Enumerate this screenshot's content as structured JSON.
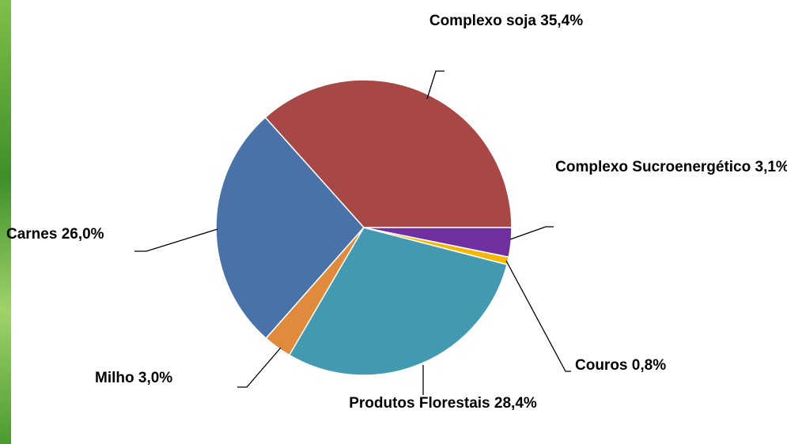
{
  "chart_data": {
    "type": "pie",
    "categories": [
      "Complexo Sucroenergético",
      "Couros",
      "Produtos Florestais",
      "Milho",
      "Carnes",
      "Complexo soja"
    ],
    "values": [
      3.1,
      0.8,
      28.4,
      3.0,
      26.0,
      35.4
    ],
    "value_labels": [
      "3,1%",
      "0,8%",
      "28,4%",
      "3,0%",
      "26,0%",
      "35,4%"
    ],
    "colors": [
      "#7030a0",
      "#f5b800",
      "#4299b0",
      "#e08a3e",
      "#4872a8",
      "#a84846"
    ]
  }
}
